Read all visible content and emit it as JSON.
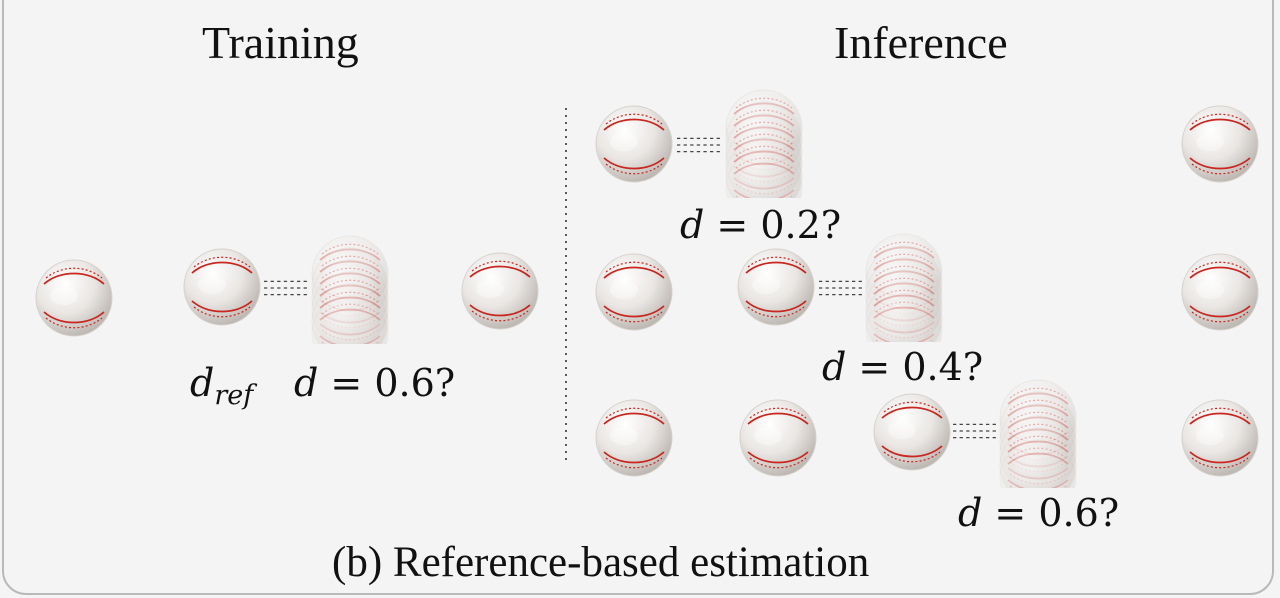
{
  "training_heading": "Training",
  "inference_heading": "Inference",
  "caption": "(b) Reference-based estimation",
  "training": {
    "ref_label": {
      "var": "d",
      "sub": "ref"
    },
    "estimate_label": {
      "var": "d",
      "op": " = ",
      "value": "0.6?"
    }
  },
  "inference": {
    "rows": [
      {
        "label": {
          "var": "d",
          "op": " = ",
          "value": "0.2?"
        }
      },
      {
        "label": {
          "var": "d",
          "op": " = ",
          "value": "0.4?"
        }
      },
      {
        "label": {
          "var": "d",
          "op": " = ",
          "value": "0.6?"
        }
      }
    ]
  },
  "colors": {
    "ball": "#e9e6e3",
    "ball_shade": "#cfcac6",
    "stitch": "#c8261f",
    "text": "#111111",
    "divider": "#333333"
  },
  "icons": {
    "ball": "baseball-icon",
    "motion_blur": "motion-blur-baseball-icon"
  }
}
